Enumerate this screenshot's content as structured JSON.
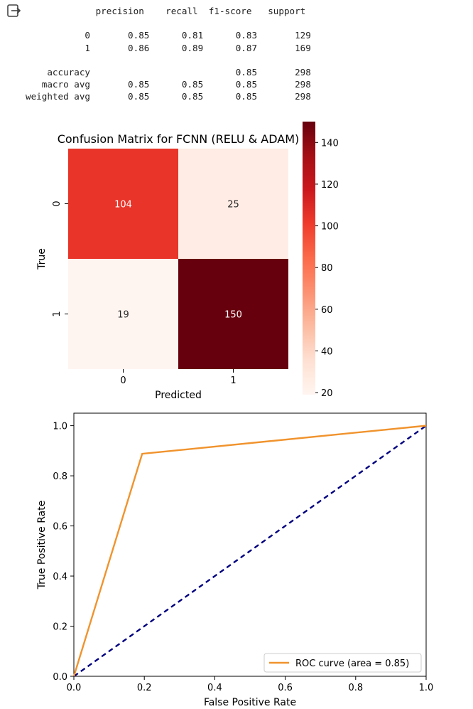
{
  "cell_output": {
    "icon": "output-redirect-icon",
    "classification_report": [
      "             precision    recall  f1-score   support",
      "",
      "           0       0.85      0.81      0.83       129",
      "           1       0.86      0.89      0.87       169",
      "",
      "    accuracy                           0.85       298",
      "   macro avg       0.85      0.85      0.85       298",
      "weighted avg       0.85      0.85      0.85       298"
    ]
  },
  "chart_data": [
    {
      "type": "heatmap",
      "title": "Confusion Matrix for FCNN (RELU & ADAM)",
      "xlabel": "Predicted",
      "ylabel": "True",
      "x_tick_labels": [
        "0",
        "1"
      ],
      "y_tick_labels": [
        "0",
        "1"
      ],
      "values": [
        [
          104,
          25
        ],
        [
          19,
          150
        ]
      ],
      "colorbar": {
        "ticks": [
          20,
          40,
          60,
          80,
          100,
          120,
          140
        ],
        "range": [
          19,
          150
        ],
        "colormap": "Reds"
      }
    },
    {
      "type": "line",
      "xlabel": "False Positive Rate",
      "ylabel": "True Positive Rate",
      "xlim": [
        0,
        1
      ],
      "ylim": [
        0,
        1.05
      ],
      "x_ticks": [
        "0.0",
        "0.2",
        "0.4",
        "0.6",
        "0.8",
        "1.0"
      ],
      "y_ticks": [
        "0.0",
        "0.2",
        "0.4",
        "0.6",
        "0.8",
        "1.0"
      ],
      "legend_position": "lower-right",
      "series": [
        {
          "name": "ROC curve (area = 0.85)",
          "color": "#f0932d",
          "style": "solid",
          "x": [
            0.0,
            0.194,
            1.0
          ],
          "y": [
            0.0,
            0.888,
            1.0
          ]
        },
        {
          "color": "#000080",
          "style": "dashed",
          "x": [
            0.0,
            1.0
          ],
          "y": [
            0.0,
            1.0
          ]
        }
      ]
    }
  ]
}
